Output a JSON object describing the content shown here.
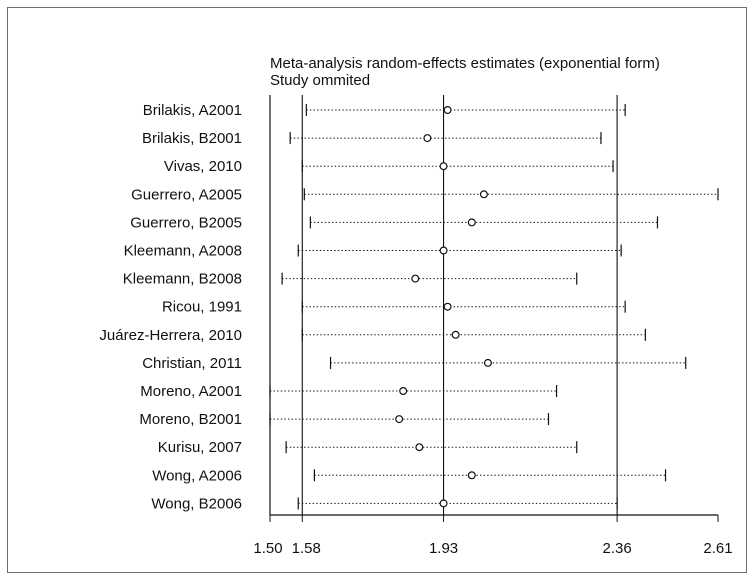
{
  "chart_data": {
    "type": "forest",
    "title": "Meta-analysis random-effects estimates (exponential form)",
    "subtitle": "Study ommited",
    "xlim": [
      1.5,
      2.61
    ],
    "x_ticks": [
      {
        "value": 1.5,
        "label": "1.50"
      },
      {
        "value": 1.58,
        "label": "1.58"
      },
      {
        "value": 1.93,
        "label": "1.93"
      },
      {
        "value": 2.36,
        "label": "2.36"
      },
      {
        "value": 2.61,
        "label": "2.61"
      }
    ],
    "reference_lines": [
      1.58,
      1.93,
      2.36
    ],
    "grid": false,
    "studies": [
      {
        "label": "Brilakis, A2001",
        "estimate": 1.94,
        "lower": 1.59,
        "upper": 2.38
      },
      {
        "label": "Brilakis, B2001",
        "estimate": 1.89,
        "lower": 1.55,
        "upper": 2.32
      },
      {
        "label": "Vivas, 2010",
        "estimate": 1.93,
        "lower": 1.58,
        "upper": 2.35
      },
      {
        "label": "Guerrero, A2005",
        "estimate": 2.03,
        "lower": 1.585,
        "upper": 2.61
      },
      {
        "label": "Guerrero, B2005",
        "estimate": 2.0,
        "lower": 1.6,
        "upper": 2.46
      },
      {
        "label": "Kleemann, A2008",
        "estimate": 1.93,
        "lower": 1.57,
        "upper": 2.37
      },
      {
        "label": "Kleemann, B2008",
        "estimate": 1.86,
        "lower": 1.53,
        "upper": 2.26
      },
      {
        "label": "Ricou, 1991",
        "estimate": 1.94,
        "lower": 1.58,
        "upper": 2.38
      },
      {
        "label": "Juárez-Herrera, 2010",
        "estimate": 1.96,
        "lower": 1.58,
        "upper": 2.43
      },
      {
        "label": "Christian, 2011",
        "estimate": 2.04,
        "lower": 1.65,
        "upper": 2.53
      },
      {
        "label": "Moreno, A2001",
        "estimate": 1.83,
        "lower": 1.5,
        "upper": 2.21
      },
      {
        "label": "Moreno, B2001",
        "estimate": 1.82,
        "lower": 1.5,
        "upper": 2.19
      },
      {
        "label": "Kurisu, 2007",
        "estimate": 1.87,
        "lower": 1.54,
        "upper": 2.26
      },
      {
        "label": "Wong, A2006",
        "estimate": 2.0,
        "lower": 1.61,
        "upper": 2.48
      },
      {
        "label": "Wong, B2006",
        "estimate": 1.93,
        "lower": 1.57,
        "upper": 2.36
      }
    ]
  }
}
